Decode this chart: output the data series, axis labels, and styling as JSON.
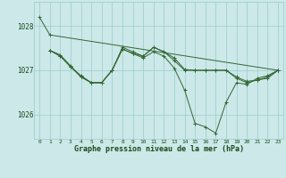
{
  "xlabel": "Graphe pression niveau de la mer (hPa)",
  "hours": [
    0,
    1,
    2,
    3,
    4,
    5,
    6,
    7,
    8,
    9,
    10,
    11,
    12,
    13,
    14,
    15,
    16,
    17,
    18,
    19,
    20,
    21,
    22,
    23
  ],
  "series": [
    [
      1028.2,
      1027.8,
      null,
      null,
      null,
      null,
      null,
      null,
      null,
      null,
      null,
      null,
      null,
      null,
      null,
      null,
      null,
      null,
      null,
      null,
      null,
      null,
      null,
      1027.0
    ],
    [
      null,
      1027.45,
      1027.35,
      1027.1,
      1026.85,
      1026.72,
      1026.72,
      1027.0,
      1027.48,
      1027.38,
      1027.28,
      1027.42,
      1027.32,
      1027.05,
      1026.55,
      1025.8,
      1025.72,
      1025.58,
      1026.28,
      1026.72,
      1026.68,
      1026.82,
      1026.88,
      1027.0
    ],
    [
      null,
      1027.45,
      1027.32,
      1027.08,
      1026.85,
      1026.72,
      1026.72,
      1027.0,
      1027.48,
      1027.38,
      1027.32,
      1027.52,
      1027.42,
      1027.22,
      1027.0,
      1027.0,
      1027.0,
      1027.0,
      1027.0,
      1026.82,
      1026.72,
      1026.78,
      1026.82,
      1027.0
    ],
    [
      null,
      1027.45,
      1027.32,
      1027.08,
      1026.88,
      1026.72,
      1026.72,
      1027.0,
      1027.52,
      1027.42,
      1027.32,
      1027.52,
      1027.42,
      1027.28,
      1027.02,
      1027.0,
      1027.0,
      1027.0,
      1027.0,
      1026.85,
      1026.75,
      1026.78,
      1026.85,
      1027.0
    ]
  ],
  "line_color": "#336633",
  "bg_color": "#cce8e8",
  "grid_color": "#99cccc",
  "text_color": "#1a4a1a",
  "ylim": [
    1025.45,
    1028.55
  ],
  "yticks": [
    1026,
    1027,
    1028
  ],
  "xlim": [
    -0.5,
    23.5
  ]
}
